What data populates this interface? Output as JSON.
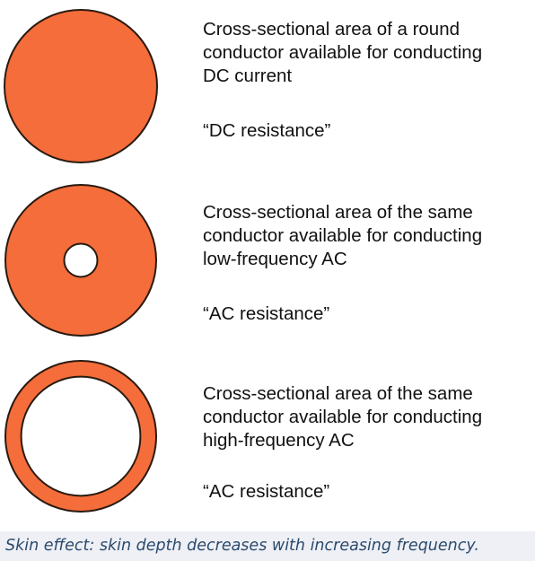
{
  "colors": {
    "conductor_fill": "#f56d3a",
    "conductor_stroke": "#2a1a10",
    "hollow_fill": "#ffffff",
    "caption_background": "#eef0f6",
    "caption_text": "#2b4a6b"
  },
  "rows": [
    {
      "description_lines": [
        "Cross-sectional area of a round",
        "conductor available for conducting",
        "DC current"
      ],
      "resistance_label": "“DC resistance”",
      "hollow_fraction": 0
    },
    {
      "description_lines": [
        "Cross-sectional area of the same",
        "conductor available for conducting",
        "low-frequency AC"
      ],
      "resistance_label": "“AC resistance”",
      "hollow_fraction": 0.22
    },
    {
      "description_lines": [
        "Cross-sectional area of the same",
        "conductor available for conducting",
        "high-frequency AC"
      ],
      "resistance_label": "“AC resistance”",
      "hollow_fraction": 0.79
    }
  ],
  "caption": "Skin effect: skin depth decreases with increasing frequency."
}
